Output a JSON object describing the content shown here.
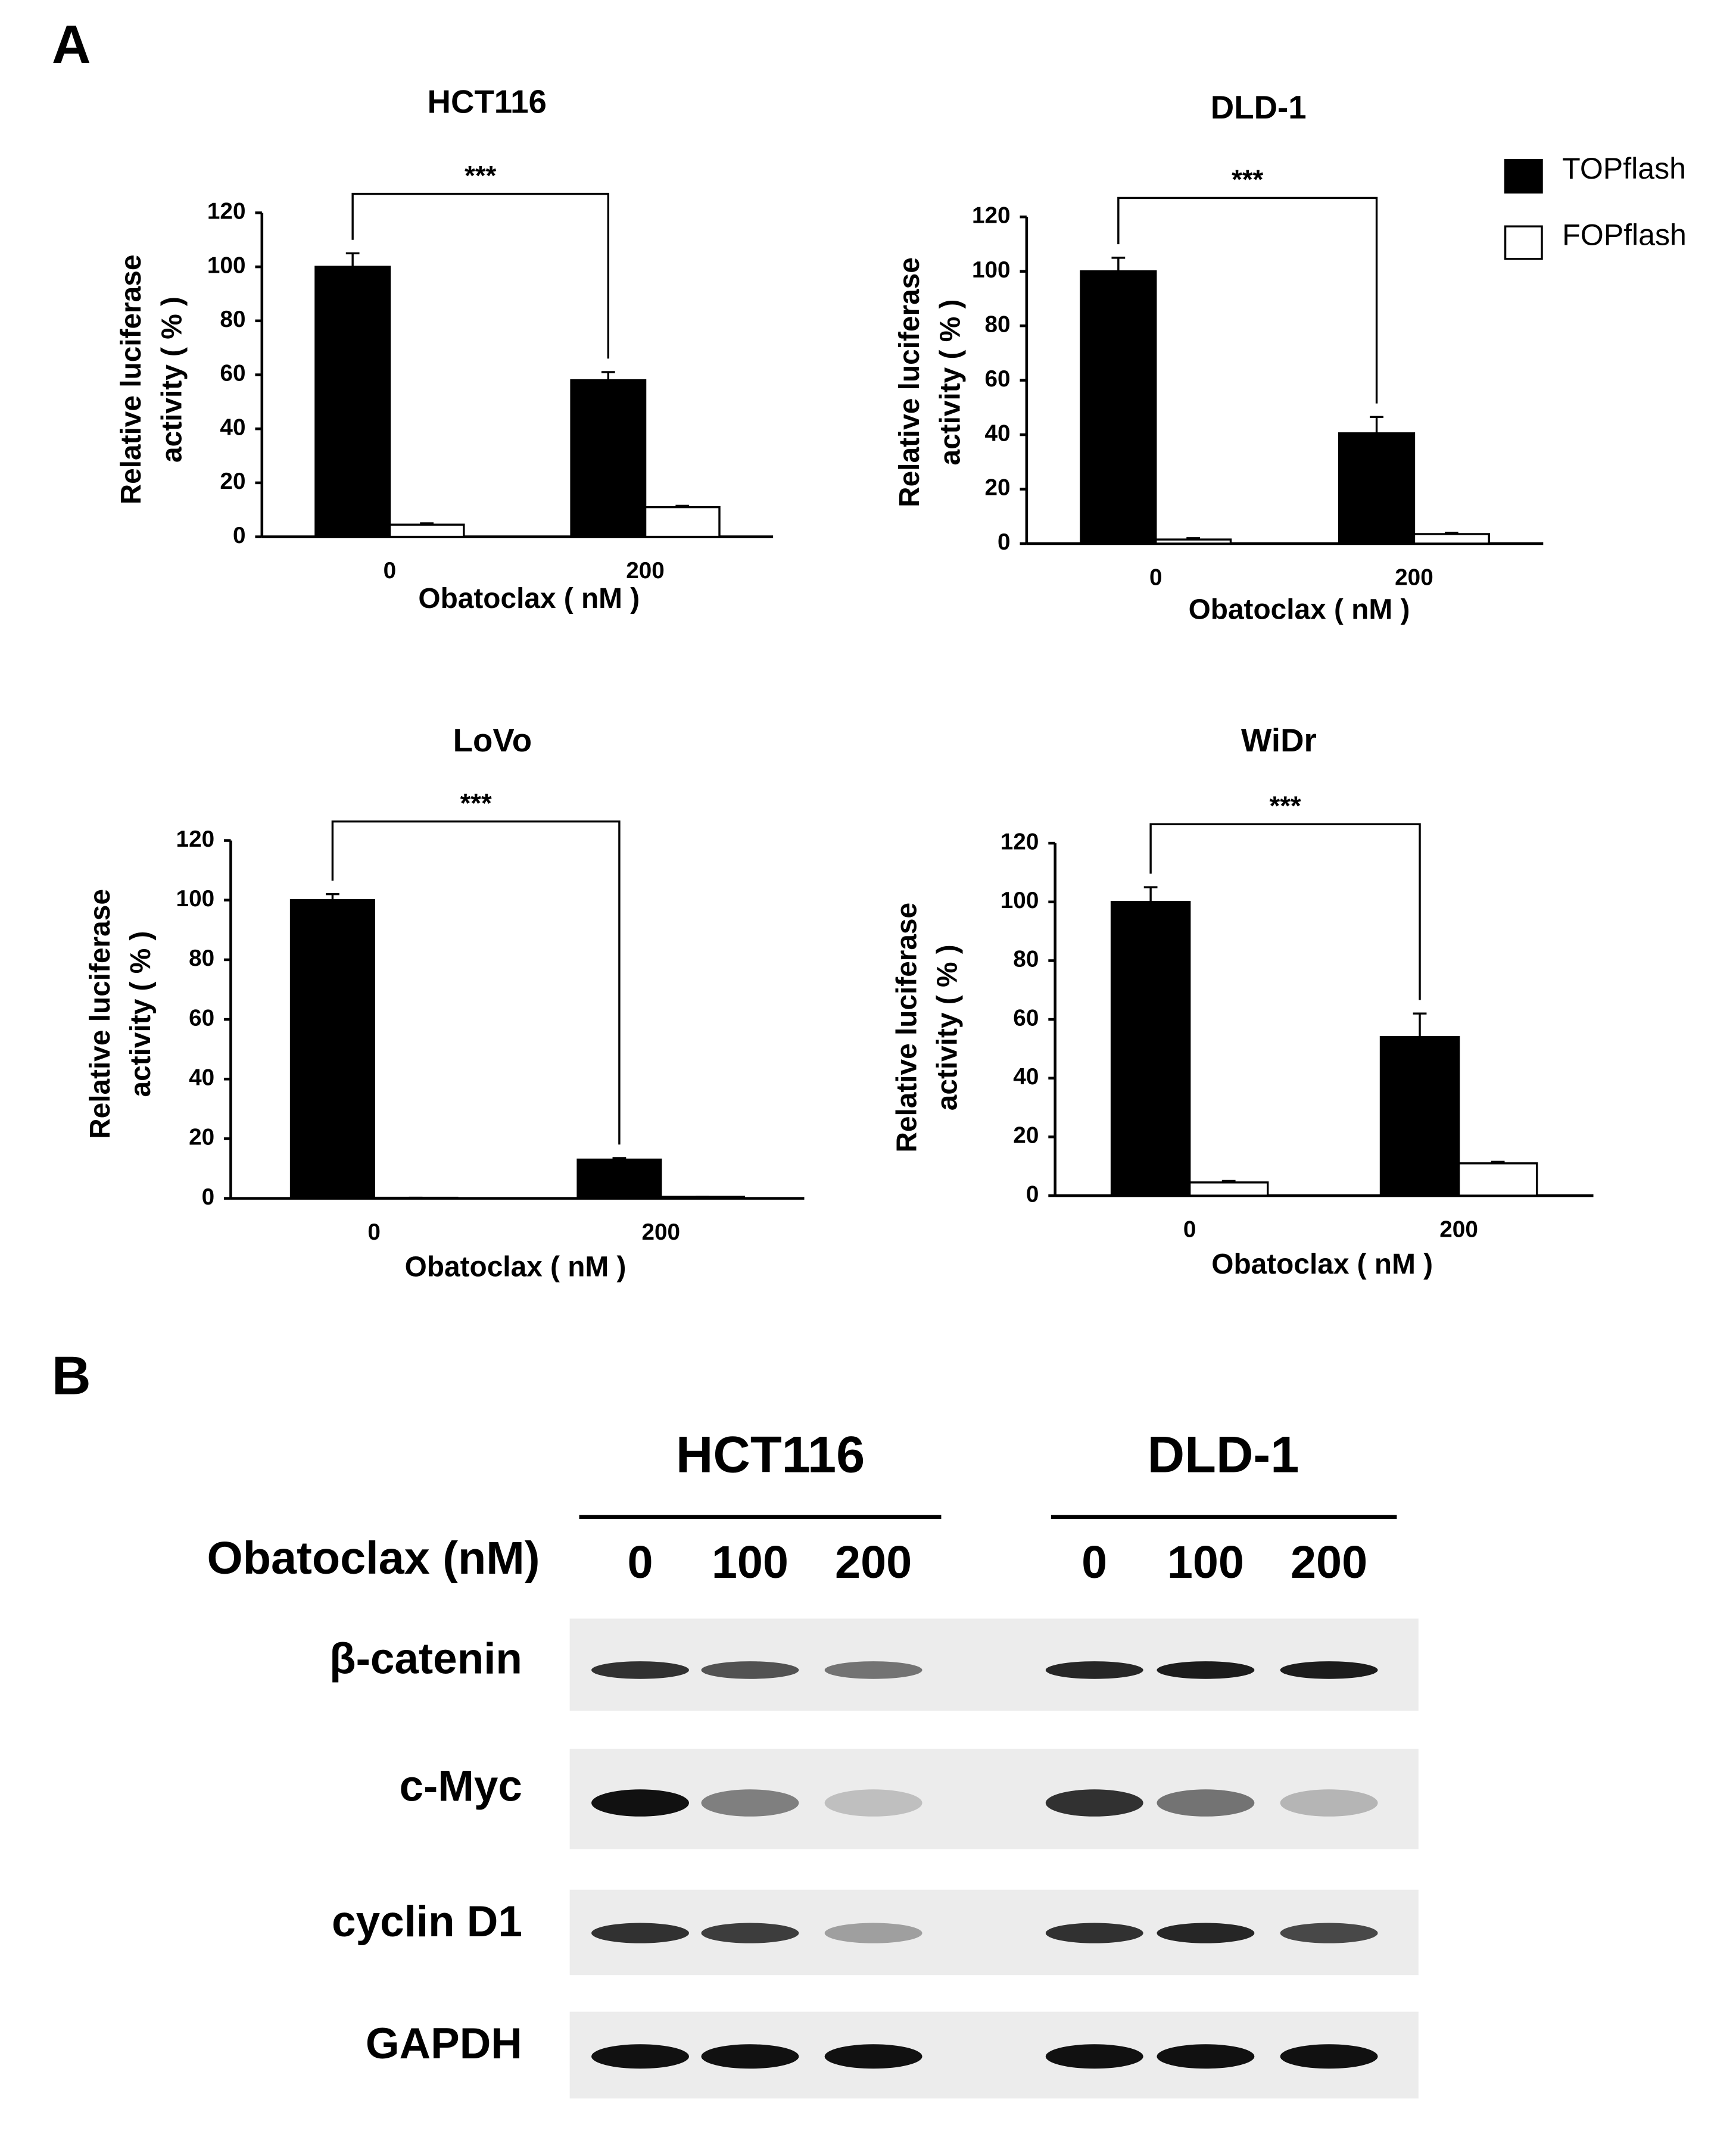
{
  "panel_labels": [
    "A",
    "B"
  ],
  "chart_data": [
    {
      "type": "bar",
      "title": "HCT116",
      "categories": [
        "0",
        "200"
      ],
      "x_label": "Obatoclax ( nM )",
      "y_label": [
        "Relative luciferase",
        "activity ( % )"
      ],
      "ylim": [
        0,
        120
      ],
      "yticks": [
        0,
        20,
        40,
        60,
        80,
        100,
        120
      ],
      "annotation": "***",
      "series": [
        {
          "color": "#000000",
          "values": [
            100,
            58
          ],
          "errors": [
            5,
            3
          ]
        },
        {
          "color": "#ffffff",
          "values": [
            4.5,
            11
          ],
          "errors": [
            0.5,
            0.5
          ]
        }
      ]
    },
    {
      "type": "bar",
      "title": "DLD-1",
      "categories": [
        "0",
        "200"
      ],
      "x_label": "Obatoclax ( nM )",
      "y_label": [
        "Relative luciferase",
        "activity ( % )"
      ],
      "ylim": [
        0,
        120
      ],
      "yticks": [
        0,
        20,
        40,
        60,
        80,
        100,
        120
      ],
      "annotation": "***",
      "legend": "right",
      "series": [
        {
          "name": "TOPflash",
          "color": "#000000",
          "values": [
            100,
            40.5
          ],
          "errors": [
            5,
            6
          ]
        },
        {
          "name": "FOPflash",
          "color": "#ffffff",
          "values": [
            1.5,
            3.5
          ],
          "errors": [
            0.5,
            0.5
          ]
        }
      ]
    },
    {
      "type": "bar",
      "title": "LoVo",
      "categories": [
        "0",
        "200"
      ],
      "x_label": "Obatoclax ( nM )",
      "y_label": [
        "Relative luciferase",
        "activity ( % )"
      ],
      "ylim": [
        0,
        120
      ],
      "yticks": [
        0,
        20,
        40,
        60,
        80,
        100,
        120
      ],
      "annotation": "***",
      "series": [
        {
          "color": "#000000",
          "values": [
            100,
            13
          ],
          "errors": [
            2,
            0.5
          ]
        },
        {
          "color": "#ffffff",
          "values": [
            0.2,
            0.5
          ],
          "errors": [
            0,
            0
          ]
        }
      ]
    },
    {
      "type": "bar",
      "title": "WiDr",
      "categories": [
        "0",
        "200"
      ],
      "x_label": "Obatoclax ( nM )",
      "y_label": [
        "Relative luciferase",
        "activity ( % )"
      ],
      "ylim": [
        0,
        120
      ],
      "yticks": [
        0,
        20,
        40,
        60,
        80,
        100,
        120
      ],
      "annotation": "***",
      "series": [
        {
          "color": "#000000",
          "values": [
            100,
            54
          ],
          "errors": [
            5,
            8
          ]
        },
        {
          "color": "#ffffff",
          "values": [
            4.5,
            11
          ],
          "errors": [
            0.5,
            0.5
          ]
        }
      ]
    }
  ],
  "blot": {
    "treatment": "Obatoclax (nM)",
    "groups": [
      {
        "name": "HCT116",
        "doses": [
          "0",
          "100",
          "200"
        ]
      },
      {
        "name": "DLD-1",
        "doses": [
          "0",
          "100",
          "200"
        ]
      }
    ],
    "proteins": [
      "β-catenin",
      "c-Myc",
      "cyclin D1",
      "GAPDH"
    ]
  }
}
